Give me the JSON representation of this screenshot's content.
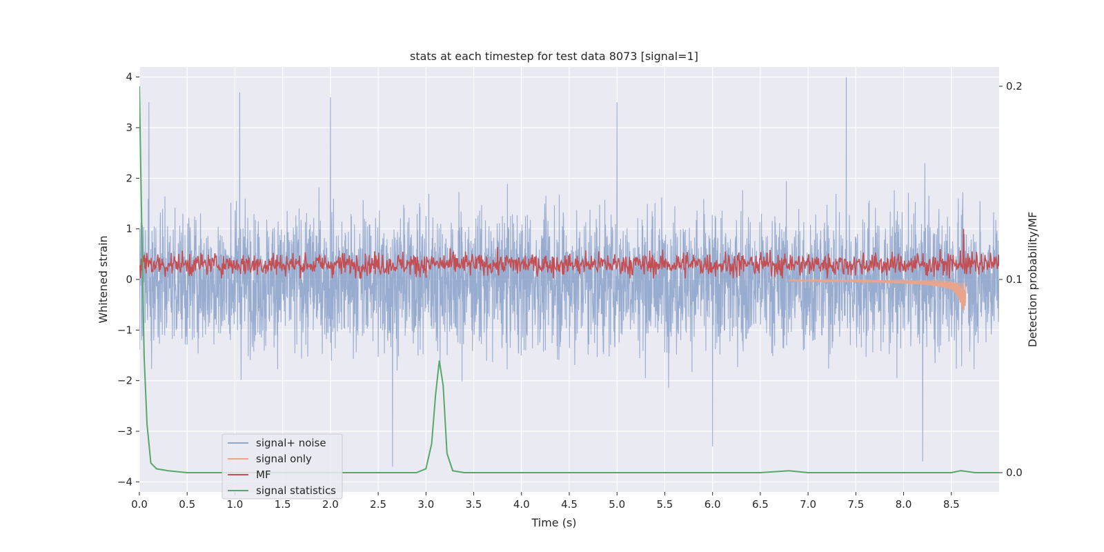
{
  "chart_data": {
    "type": "line",
    "title": "stats at each timestep for test data 8073 [signal=1]",
    "xlabel": "Time (s)",
    "ylabel": "Whitened strain",
    "y2label": "Detection probability/MF",
    "xlim": [
      0.0,
      9.0
    ],
    "ylim": [
      -4.2,
      4.2
    ],
    "y2lim": [
      -0.01,
      0.21
    ],
    "xticks": [
      0.0,
      0.5,
      1.0,
      1.5,
      2.0,
      2.5,
      3.0,
      3.5,
      4.0,
      4.5,
      5.0,
      5.5,
      6.0,
      6.5,
      7.0,
      7.5,
      8.0,
      8.5
    ],
    "xtick_labels": [
      "0.0",
      "0.5",
      "1.0",
      "1.5",
      "2.0",
      "2.5",
      "3.0",
      "3.5",
      "4.0",
      "4.5",
      "5.0",
      "5.5",
      "6.0",
      "6.5",
      "7.0",
      "7.5",
      "8.0",
      "8.5"
    ],
    "yticks": [
      4,
      3,
      2,
      1,
      0,
      -1,
      -2,
      -3,
      -4
    ],
    "ytick_labels": [
      "4",
      "3",
      "2",
      "1",
      "0",
      "−1",
      "−2",
      "−3",
      "−4"
    ],
    "y2ticks": [
      0.2,
      0.1,
      0.0
    ],
    "y2tick_labels": [
      "0.2",
      "0.1",
      "0.0"
    ],
    "grid": true,
    "legend_position": "lower-left",
    "colors": {
      "plot_bg": "#eaeaf2",
      "grid": "#ffffff",
      "text": "#262626",
      "noise": "#8fa5cc",
      "signal": "#e8a58c",
      "mf": "#c44e52",
      "stats": "#55a868"
    },
    "series": [
      {
        "name": "signal+ noise",
        "axis": "left",
        "kind": "dense-noise",
        "amplitude_envelope": [
          -3.7,
          4.0
        ],
        "sampling_rate_hz": 2048,
        "description_points": {
          "x": [
            0.1,
            1.05,
            2.0,
            2.65,
            5.0,
            6.0,
            7.4,
            8.2
          ],
          "y": [
            3.5,
            3.7,
            3.6,
            -3.7,
            3.5,
            -3.3,
            4.0,
            -3.6
          ]
        }
      },
      {
        "name": "signal only",
        "axis": "left",
        "kind": "chirp",
        "x": [
          6.8,
          7.2,
          7.6,
          8.0,
          8.2,
          8.4,
          8.5,
          8.55,
          8.6,
          8.63,
          8.65
        ],
        "y": [
          -0.03,
          -0.04,
          -0.05,
          -0.08,
          -0.1,
          -0.15,
          -0.2,
          -0.3,
          -0.5,
          -0.65,
          -0.45
        ]
      },
      {
        "name": "MF",
        "axis": "left",
        "kind": "dense-noise",
        "mean": 0.3,
        "amplitude_envelope": [
          0.0,
          1.0
        ],
        "peak": {
          "x": 8.63,
          "y": 1.0
        }
      },
      {
        "name": "signal statistics",
        "axis": "right",
        "x": [
          0.0,
          0.02,
          0.05,
          0.08,
          0.12,
          0.18,
          0.3,
          0.5,
          1.0,
          1.5,
          2.0,
          2.5,
          2.9,
          3.0,
          3.06,
          3.1,
          3.14,
          3.18,
          3.22,
          3.28,
          3.4,
          4.0,
          5.0,
          6.0,
          6.5,
          6.8,
          7.0,
          7.5,
          8.0,
          8.5,
          8.6,
          8.75,
          9.0
        ],
        "y": [
          0.2,
          0.14,
          0.06,
          0.025,
          0.005,
          0.002,
          0.001,
          0.0,
          0.0,
          0.0,
          0.0,
          0.0,
          0.0,
          0.002,
          0.015,
          0.04,
          0.058,
          0.045,
          0.01,
          0.001,
          0.0,
          0.0,
          0.0,
          0.0,
          0.0,
          0.001,
          0.0,
          0.0,
          0.0,
          0.0,
          0.001,
          0.0,
          0.0
        ]
      }
    ]
  },
  "legend": {
    "items": [
      {
        "label": "signal+ noise",
        "color": "#8fa5cc"
      },
      {
        "label": "signal only",
        "color": "#e8a58c"
      },
      {
        "label": "MF",
        "color": "#c44e52"
      },
      {
        "label": "signal statistics",
        "color": "#55a868"
      }
    ]
  }
}
